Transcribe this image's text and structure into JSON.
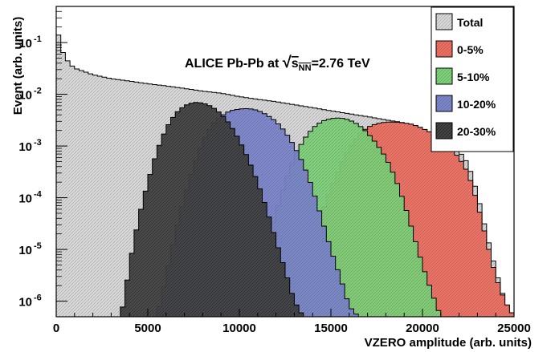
{
  "chart_data": {
    "type": "histogram",
    "title": "ALICE Pb-Pb at √s_NN=2.76 TeV",
    "annotation": {
      "prefix": "ALICE Pb-Pb at ",
      "sqrt_symbol": "√",
      "s_letter": "s",
      "subscript": "NN",
      "suffix": "=2.76 TeV"
    },
    "xlabel": "VZERO amplitude (arb. units)",
    "ylabel": "Event  (arb. units)",
    "xlim": [
      0,
      25000
    ],
    "ylim": [
      5e-07,
      0.5
    ],
    "yscale": "log",
    "legend_position": "top-right",
    "x_ticks": [
      {
        "value": 0,
        "label": "0"
      },
      {
        "value": 5000,
        "label": "5000"
      },
      {
        "value": 10000,
        "label": "10000"
      },
      {
        "value": 15000,
        "label": "15000"
      },
      {
        "value": 20000,
        "label": "20000"
      },
      {
        "value": 25000,
        "label": "25000"
      }
    ],
    "y_ticks": [
      {
        "value": 0.1,
        "base": "10",
        "exp": "-1"
      },
      {
        "value": 0.01,
        "base": "10",
        "exp": "-2"
      },
      {
        "value": 0.001,
        "base": "10",
        "exp": "-3"
      },
      {
        "value": 0.0001,
        "base": "10",
        "exp": "-4"
      },
      {
        "value": 1e-05,
        "base": "10",
        "exp": "-5"
      },
      {
        "value": 1e-06,
        "base": "10",
        "exp": "-6"
      }
    ],
    "series": [
      {
        "name": "Total",
        "color": "#d9d9d9",
        "points": [
          [
            0,
            0.3
          ],
          [
            150,
            0.12
          ],
          [
            400,
            0.06
          ],
          [
            700,
            0.04
          ],
          [
            1000,
            0.032
          ],
          [
            2000,
            0.024
          ],
          [
            3000,
            0.02
          ],
          [
            4000,
            0.018
          ],
          [
            5000,
            0.016
          ],
          [
            6000,
            0.0145
          ],
          [
            7000,
            0.013
          ],
          [
            8000,
            0.0115
          ],
          [
            9000,
            0.0105
          ],
          [
            10000,
            0.009
          ],
          [
            11000,
            0.008
          ],
          [
            12000,
            0.0072
          ],
          [
            13000,
            0.0063
          ],
          [
            14000,
            0.0055
          ],
          [
            15000,
            0.0048
          ],
          [
            16000,
            0.0042
          ],
          [
            17000,
            0.0037
          ],
          [
            18000,
            0.0032
          ],
          [
            19000,
            0.0028
          ],
          [
            20000,
            0.0022
          ],
          [
            21000,
            0.0014
          ],
          [
            22000,
            0.0008
          ],
          [
            22500,
            0.00045
          ],
          [
            23000,
            0.00012
          ],
          [
            23500,
            2e-05
          ],
          [
            24000,
            4e-06
          ],
          [
            24500,
            1e-06
          ],
          [
            25000,
            5e-07
          ]
        ]
      },
      {
        "name": "0-5%",
        "color": "#ef6f62",
        "points": [
          [
            12500,
            5e-07
          ],
          [
            13500,
            3e-06
          ],
          [
            14000,
            1e-05
          ],
          [
            14500,
            5e-05
          ],
          [
            15000,
            0.00015
          ],
          [
            15500,
            0.0004
          ],
          [
            16000,
            0.0009
          ],
          [
            16500,
            0.0016
          ],
          [
            17000,
            0.0023
          ],
          [
            17500,
            0.0027
          ],
          [
            18000,
            0.0029
          ],
          [
            18500,
            0.0029
          ],
          [
            19000,
            0.0028
          ],
          [
            19500,
            0.0026
          ],
          [
            20000,
            0.0022
          ],
          [
            20500,
            0.0018
          ],
          [
            21000,
            0.0013
          ],
          [
            21500,
            0.0009
          ],
          [
            22000,
            0.0006
          ],
          [
            22500,
            0.0003
          ],
          [
            23000,
            8e-05
          ],
          [
            23500,
            1.5e-05
          ],
          [
            24000,
            3e-06
          ],
          [
            24500,
            1e-06
          ],
          [
            25000,
            5e-07
          ]
        ]
      },
      {
        "name": "5-10%",
        "color": "#7ed37a",
        "points": [
          [
            10500,
            5e-07
          ],
          [
            11000,
            2e-06
          ],
          [
            11500,
            1e-05
          ],
          [
            12000,
            5e-05
          ],
          [
            12500,
            0.0002
          ],
          [
            13000,
            0.0006
          ],
          [
            13500,
            0.0013
          ],
          [
            14000,
            0.0022
          ],
          [
            14500,
            0.003
          ],
          [
            15000,
            0.0034
          ],
          [
            15500,
            0.0035
          ],
          [
            16000,
            0.0032
          ],
          [
            16500,
            0.0026
          ],
          [
            17000,
            0.0018
          ],
          [
            17500,
            0.0011
          ],
          [
            18000,
            0.0006
          ],
          [
            18500,
            0.00025
          ],
          [
            19000,
            8e-05
          ],
          [
            19500,
            2e-05
          ],
          [
            20000,
            5e-06
          ],
          [
            20500,
            1.5e-06
          ],
          [
            21000,
            5e-07
          ]
        ]
      },
      {
        "name": "10-20%",
        "color": "#7d86cc",
        "points": [
          [
            5500,
            5e-07
          ],
          [
            6000,
            3e-06
          ],
          [
            6500,
            2e-05
          ],
          [
            7000,
            0.0001
          ],
          [
            7500,
            0.0004
          ],
          [
            8000,
            0.0012
          ],
          [
            8500,
            0.0025
          ],
          [
            9000,
            0.0038
          ],
          [
            9500,
            0.0048
          ],
          [
            10000,
            0.0052
          ],
          [
            10500,
            0.0053
          ],
          [
            11000,
            0.0049
          ],
          [
            11500,
            0.004
          ],
          [
            12000,
            0.003
          ],
          [
            12500,
            0.0019
          ],
          [
            13000,
            0.001
          ],
          [
            13500,
            0.00045
          ],
          [
            14000,
            0.00015
          ],
          [
            14500,
            4e-05
          ],
          [
            15000,
            1e-05
          ],
          [
            15500,
            3e-06
          ],
          [
            16000,
            8e-07
          ],
          [
            16500,
            5e-07
          ]
        ]
      },
      {
        "name": "20-30%",
        "color": "#444444",
        "points": [
          [
            3500,
            5e-07
          ],
          [
            3700,
            1e-06
          ],
          [
            4000,
            5e-06
          ],
          [
            4500,
            4e-05
          ],
          [
            5000,
            0.0002
          ],
          [
            5500,
            0.0008
          ],
          [
            6000,
            0.0022
          ],
          [
            6500,
            0.0042
          ],
          [
            7000,
            0.006
          ],
          [
            7500,
            0.007
          ],
          [
            8000,
            0.0068
          ],
          [
            8500,
            0.0058
          ],
          [
            9000,
            0.0042
          ],
          [
            9500,
            0.0026
          ],
          [
            10000,
            0.0013
          ],
          [
            10500,
            0.00055
          ],
          [
            11000,
            0.0002
          ],
          [
            11500,
            6e-05
          ],
          [
            12000,
            1.5e-05
          ],
          [
            12500,
            4e-06
          ],
          [
            13000,
            1e-06
          ],
          [
            13500,
            5e-07
          ]
        ]
      }
    ]
  }
}
